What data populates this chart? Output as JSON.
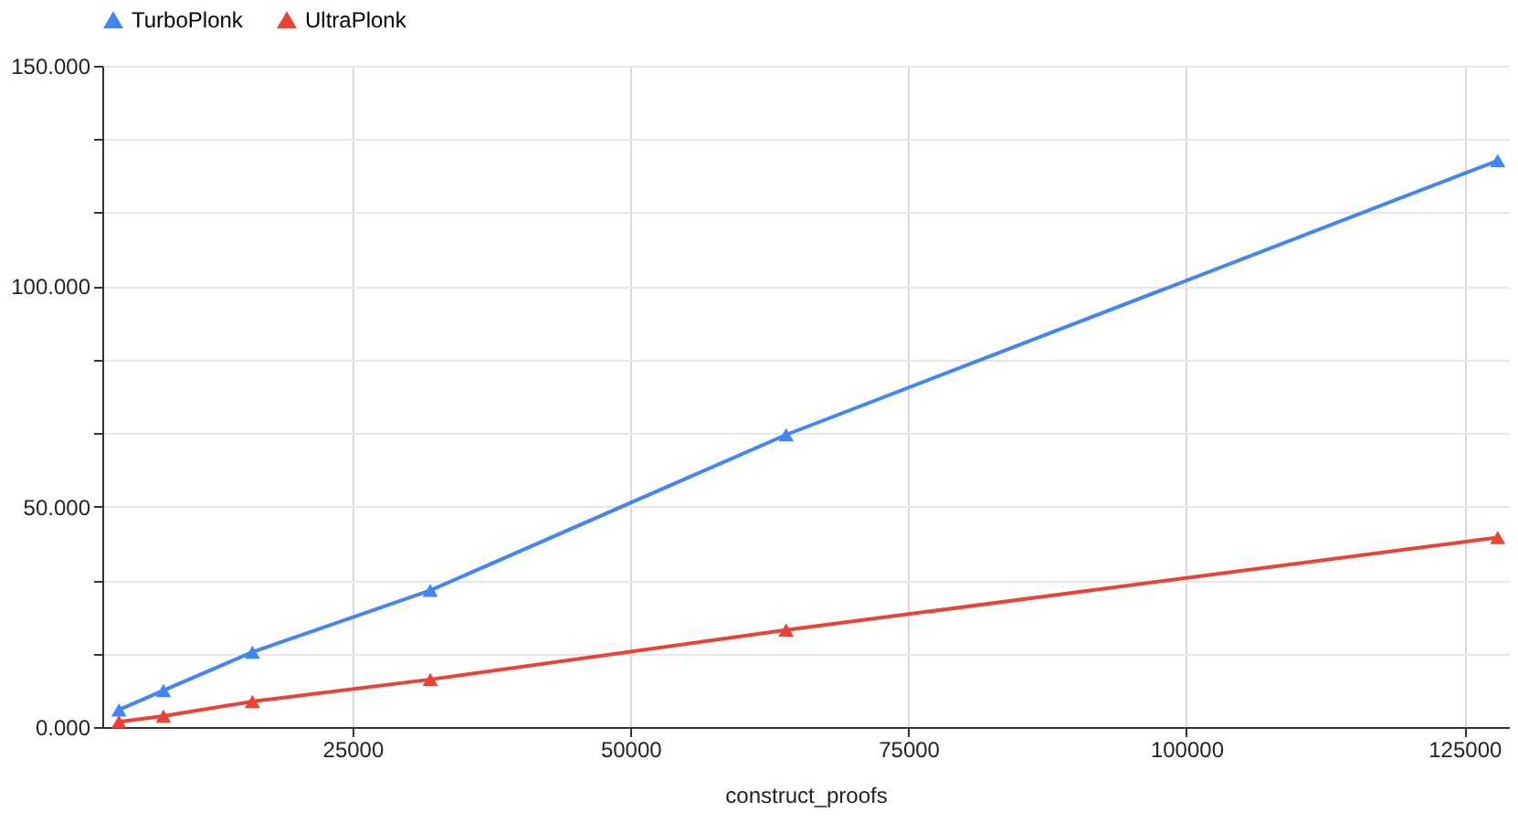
{
  "chart_data": {
    "type": "line",
    "xlabel": "construct_proofs",
    "x": [
      4000,
      8000,
      16000,
      32000,
      64000,
      128000
    ],
    "series": [
      {
        "name": "TurboPlonk",
        "color": "#4285f4",
        "values": [
          3.9,
          8.3,
          17,
          31,
          66.3,
          128.5
        ]
      },
      {
        "name": "UltraPlonk",
        "color": "#ea4335",
        "values": [
          1.2,
          2.5,
          5.8,
          10.8,
          22,
          43
        ]
      }
    ],
    "xlim": [
      2500,
      129000
    ],
    "xticks": [
      25000,
      50000,
      75000,
      100000,
      125000
    ],
    "ylim": [
      0,
      150
    ],
    "yticks": [
      {
        "value": 0,
        "label": "0.000"
      },
      {
        "value": 16.67,
        "label": null
      },
      {
        "value": 33.33,
        "label": null
      },
      {
        "value": 50,
        "label": "50.000"
      },
      {
        "value": 66.67,
        "label": null
      },
      {
        "value": 83.33,
        "label": null
      },
      {
        "value": 100,
        "label": "100.000"
      },
      {
        "value": 116.67,
        "label": null
      },
      {
        "value": 133.33,
        "label": null
      },
      {
        "value": 150,
        "label": "150.000"
      }
    ],
    "grid": true,
    "legend": "top",
    "marker": "triangle",
    "line_style": "solid"
  }
}
